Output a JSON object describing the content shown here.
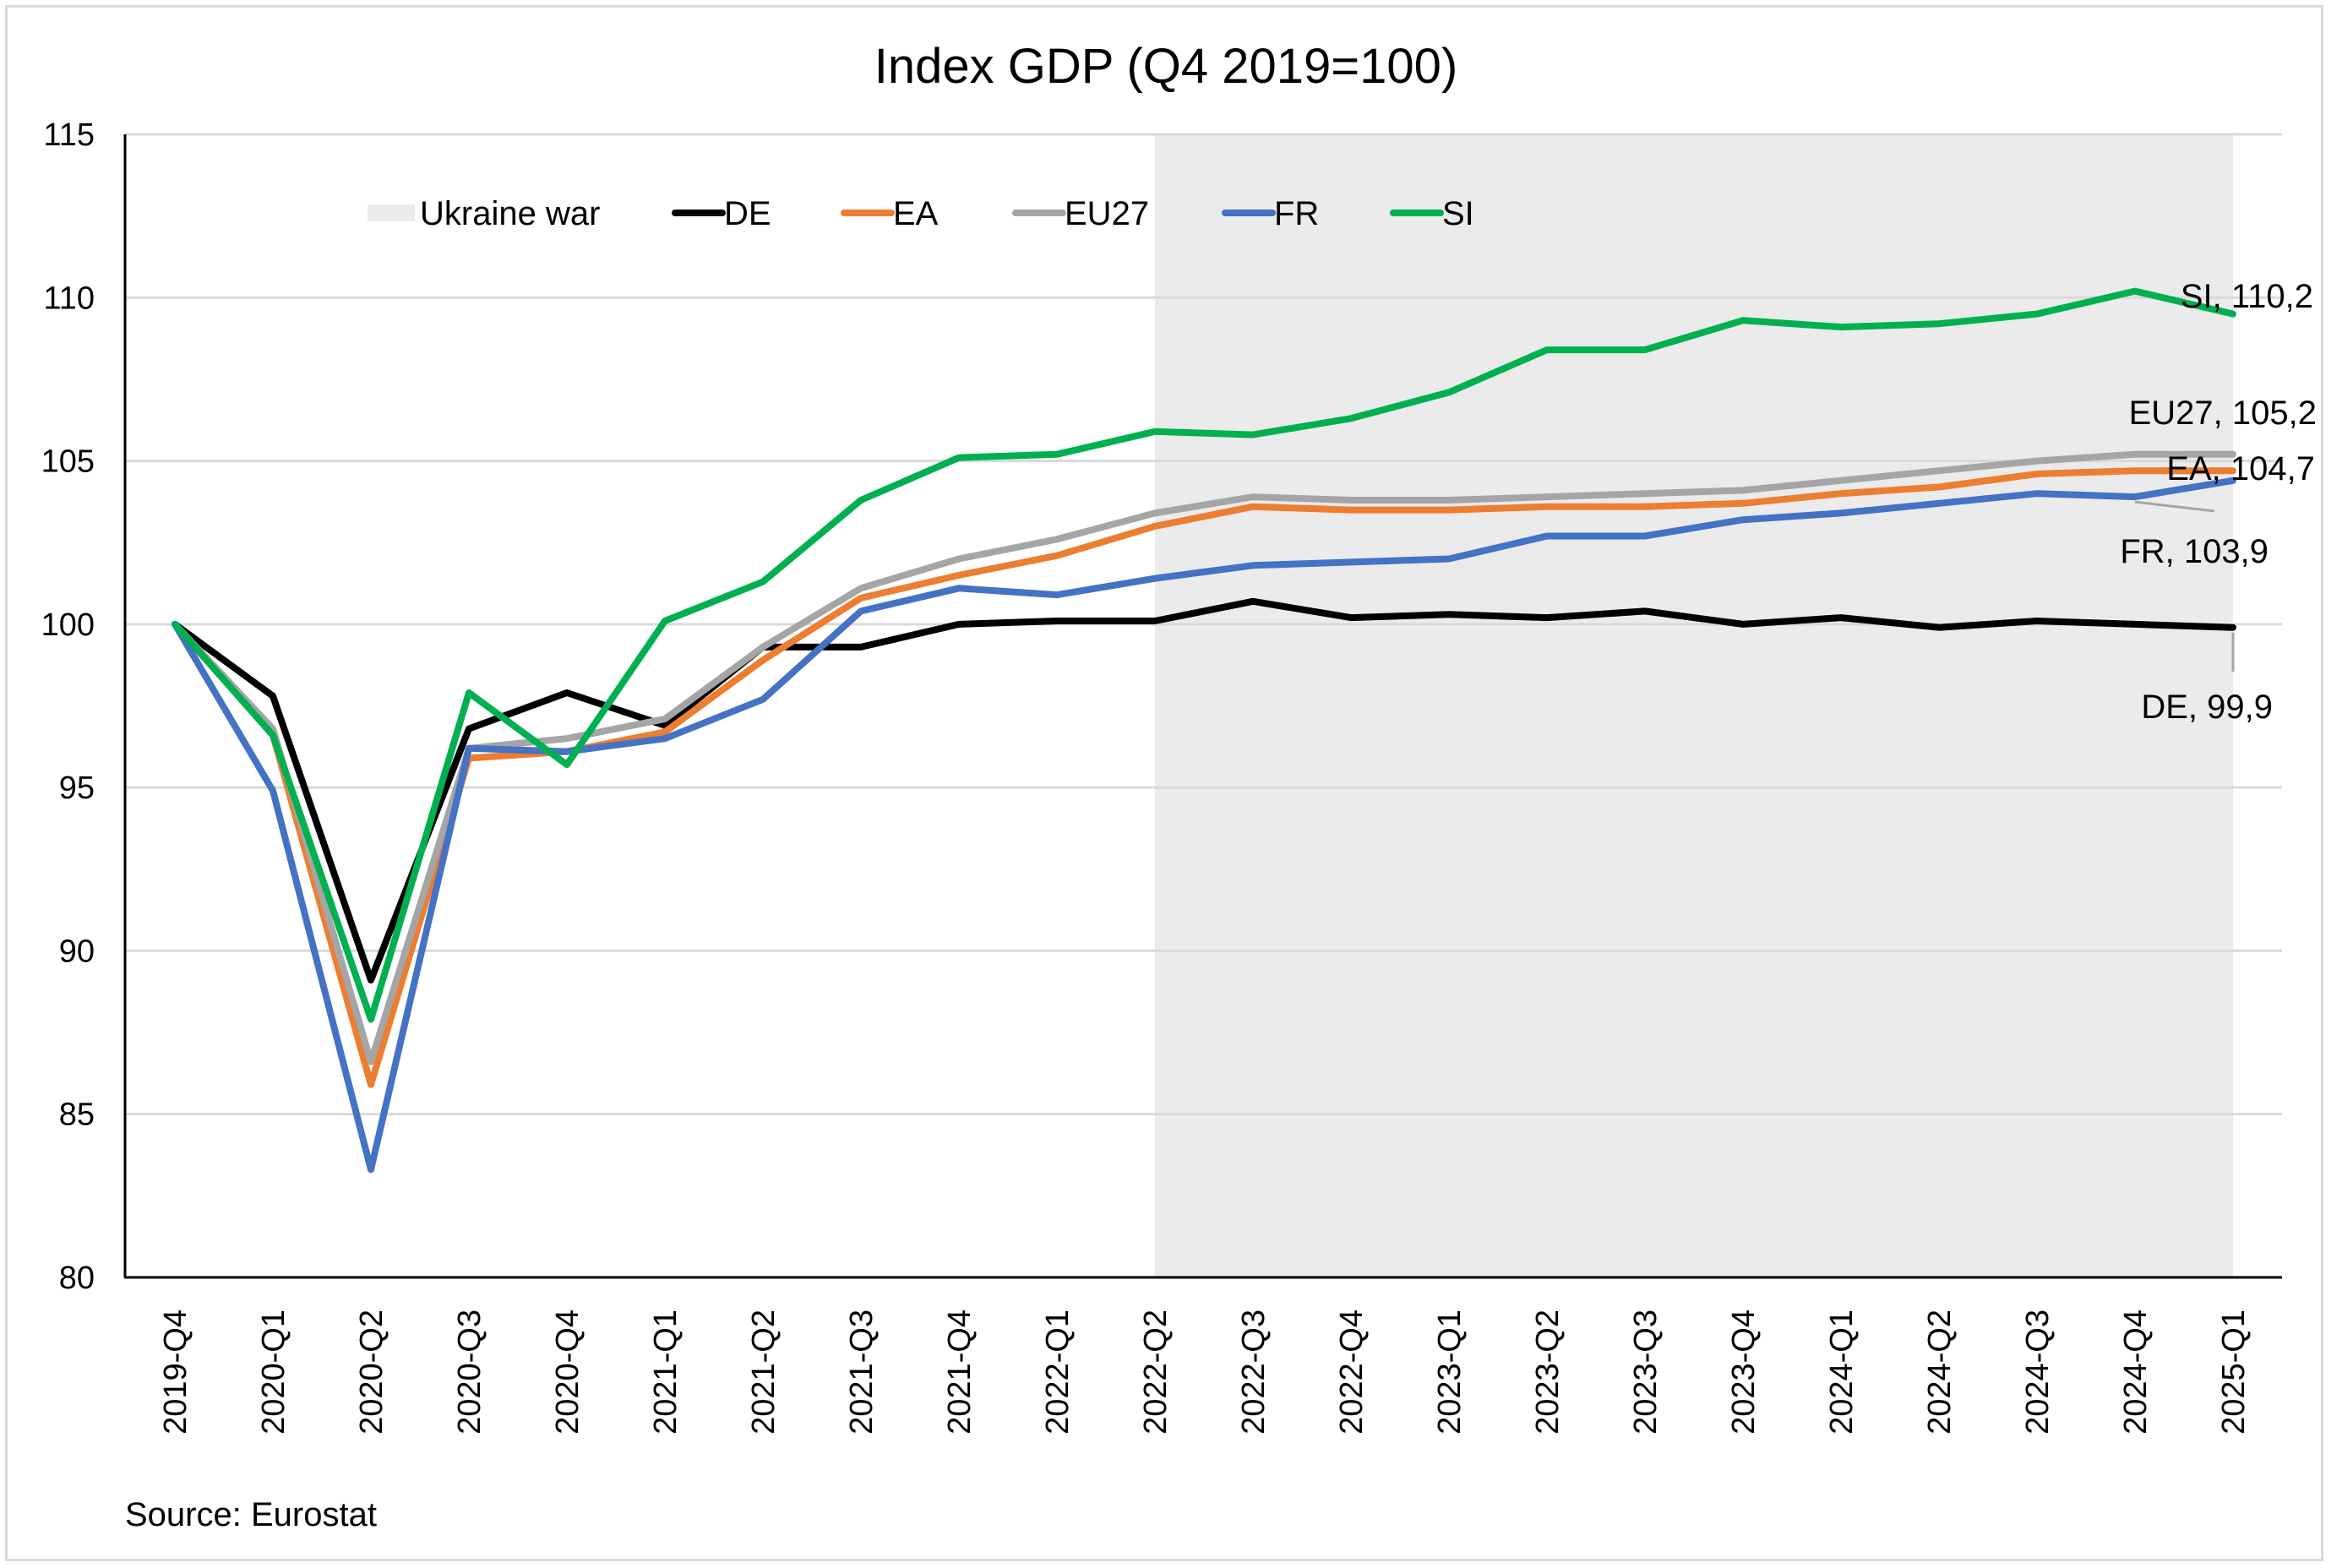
{
  "chart_data": {
    "type": "line",
    "title": "Index GDP (Q4 2019=100)",
    "xlabel": "",
    "ylabel": "",
    "ylim": [
      80,
      115
    ],
    "yticks": [
      80,
      85,
      90,
      95,
      100,
      105,
      110,
      115
    ],
    "grid": "horizontal",
    "legend_position": "top-left (inside plot)",
    "source": "Source: Eurostat",
    "categories": [
      "2019-Q4",
      "2020-Q1",
      "2020-Q2",
      "2020-Q3",
      "2020-Q4",
      "2021-Q1",
      "2021-Q2",
      "2021-Q3",
      "2021-Q4",
      "2022-Q1",
      "2022-Q2",
      "2022-Q3",
      "2022-Q4",
      "2023-Q1",
      "2023-Q2",
      "2023-Q3",
      "2023-Q4",
      "2024-Q1",
      "2024-Q2",
      "2024-Q3",
      "2024-Q4",
      "2025-Q1"
    ],
    "shaded_region": {
      "name": "Ukraine war",
      "from": "2022-Q2",
      "to": "2025-Q1",
      "color": "#ebebeb"
    },
    "series": [
      {
        "name": "DE",
        "color": "#000000",
        "values": [
          100,
          97.8,
          89.1,
          96.8,
          97.9,
          96.9,
          99.3,
          99.3,
          100.0,
          100.1,
          100.1,
          100.7,
          100.2,
          100.3,
          100.2,
          100.4,
          100.0,
          100.2,
          99.9,
          100.1,
          100.0,
          99.9
        ]
      },
      {
        "name": "EA",
        "color": "#ed7d31",
        "values": [
          100,
          96.6,
          85.9,
          95.9,
          96.1,
          96.7,
          98.9,
          100.8,
          101.5,
          102.1,
          103.0,
          103.6,
          103.5,
          103.5,
          103.6,
          103.6,
          103.7,
          104.0,
          104.2,
          104.6,
          104.7,
          104.7
        ]
      },
      {
        "name": "EU27",
        "color": "#a5a5a5",
        "values": [
          100,
          96.8,
          86.6,
          96.2,
          96.5,
          97.1,
          99.3,
          101.1,
          102.0,
          102.6,
          103.4,
          103.9,
          103.8,
          103.8,
          103.9,
          104.0,
          104.1,
          104.4,
          104.7,
          105.0,
          105.2,
          105.2
        ]
      },
      {
        "name": "FR",
        "color": "#4472c4",
        "values": [
          100,
          94.9,
          83.3,
          96.2,
          96.1,
          96.5,
          97.7,
          100.4,
          101.1,
          100.9,
          101.4,
          101.8,
          101.9,
          102.0,
          102.7,
          102.7,
          103.2,
          103.4,
          103.7,
          104.0,
          103.9,
          104.4
        ]
      },
      {
        "name": "SI",
        "color": "#00b050",
        "values": [
          100,
          96.6,
          87.9,
          97.9,
          95.7,
          100.1,
          101.3,
          103.8,
          105.1,
          105.2,
          105.9,
          105.8,
          106.3,
          107.1,
          108.4,
          108.4,
          109.3,
          109.1,
          109.2,
          109.5,
          110.2,
          109.5
        ]
      }
    ],
    "data_labels": [
      {
        "series": "SI",
        "text": "SI, 110,2",
        "category": "2024-Q4",
        "value": 110.2
      },
      {
        "series": "EU27",
        "text": "EU27, 105,2",
        "category": "2025-Q1",
        "value": 105.2
      },
      {
        "series": "EA",
        "text": "EA, 104,7",
        "category": "2025-Q1",
        "value": 104.7
      },
      {
        "series": "FR",
        "text": "FR, 103,9",
        "category": "2024-Q4",
        "value": 103.9
      },
      {
        "series": "DE",
        "text": "DE, 99,9",
        "category": "2025-Q1",
        "value": 99.9
      }
    ],
    "legend": [
      {
        "label": "Ukraine war",
        "kind": "area",
        "color": "#ebebeb"
      },
      {
        "label": "DE",
        "kind": "line",
        "color": "#000000"
      },
      {
        "label": "EA",
        "kind": "line",
        "color": "#ed7d31"
      },
      {
        "label": "EU27",
        "kind": "line",
        "color": "#a5a5a5"
      },
      {
        "label": "FR",
        "kind": "line",
        "color": "#4472c4"
      },
      {
        "label": "SI",
        "kind": "line",
        "color": "#00b050"
      }
    ]
  }
}
